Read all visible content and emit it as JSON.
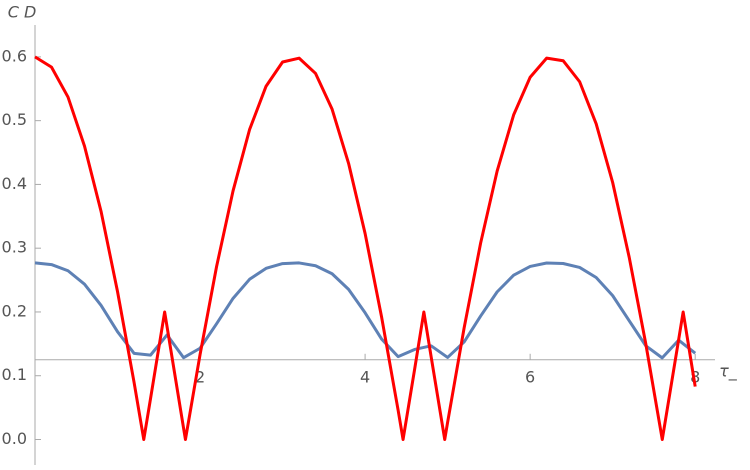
{
  "chart_data": {
    "type": "line",
    "ylabel": "C D",
    "xlabel": "τ_",
    "xlim": [
      0,
      8.24
    ],
    "ylim": [
      -0.04,
      0.65
    ],
    "x_axis_crossing": 0.125,
    "xticks": [
      2,
      4,
      6,
      8
    ],
    "yticks": [
      {
        "value": 0,
        "label": "0.0"
      },
      0.1,
      0.2,
      0.3,
      0.4,
      0.5,
      0.6
    ],
    "series": [
      {
        "color": "#5e81b5",
        "x": [
          0,
          0.2,
          0.4,
          0.6,
          0.8,
          1.0,
          1.2,
          1.4,
          1.6,
          1.8,
          2.0,
          2.2,
          2.4,
          2.6,
          2.8,
          3.0,
          3.2,
          3.4,
          3.6,
          3.8,
          4.0,
          4.2,
          4.4,
          4.6,
          4.8,
          5.0,
          5.2,
          5.4,
          5.6,
          5.8,
          6.0,
          6.2,
          6.4,
          6.6,
          6.8,
          7.0,
          7.2,
          7.4,
          7.6,
          7.8,
          8.0
        ],
        "values": [
          0.277,
          0.2743,
          0.2646,
          0.2436,
          0.2104,
          0.1691,
          0.1351,
          0.1323,
          0.164,
          0.1283,
          0.1431,
          0.1814,
          0.2213,
          0.2512,
          0.2684,
          0.2758,
          0.2769,
          0.2725,
          0.2599,
          0.2354,
          0.1987,
          0.1575,
          0.1299,
          0.1412,
          0.1469,
          0.1287,
          0.153,
          0.1936,
          0.2315,
          0.2576,
          0.2714,
          0.2768,
          0.276,
          0.2698,
          0.254,
          0.2256,
          0.1863,
          0.1471,
          0.128,
          0.1558,
          0.1354
        ]
      },
      {
        "color": "#ff0000",
        "x": [
          0,
          0.2,
          0.4,
          0.6,
          0.8,
          1.0,
          1.2,
          1.318,
          1.4,
          1.571,
          1.6,
          1.8,
          1.823,
          2.0,
          2.2,
          2.4,
          2.6,
          2.8,
          3.0,
          3.2,
          3.4,
          3.6,
          3.8,
          4.0,
          4.2,
          4.4,
          4.46,
          4.6,
          4.712,
          4.8,
          4.965,
          5.0,
          5.2,
          5.4,
          5.6,
          5.8,
          6.0,
          6.2,
          6.4,
          6.6,
          6.8,
          7.0,
          7.2,
          7.4,
          7.601,
          7.8,
          7.854,
          8.0
        ],
        "values": [
          0.6,
          0.584,
          0.537,
          0.46,
          0.358,
          0.232,
          0.09,
          0,
          0.064,
          0.2,
          0.177,
          0.018,
          0,
          0.133,
          0.271,
          0.39,
          0.486,
          0.554,
          0.592,
          0.598,
          0.574,
          0.518,
          0.433,
          0.323,
          0.192,
          0.046,
          0,
          0.11,
          0.2,
          0.13,
          0,
          0.027,
          0.175,
          0.308,
          0.421,
          0.509,
          0.568,
          0.598,
          0.594,
          0.561,
          0.495,
          0.403,
          0.286,
          0.151,
          0,
          0.157,
          0.2,
          0.083
        ]
      }
    ]
  }
}
